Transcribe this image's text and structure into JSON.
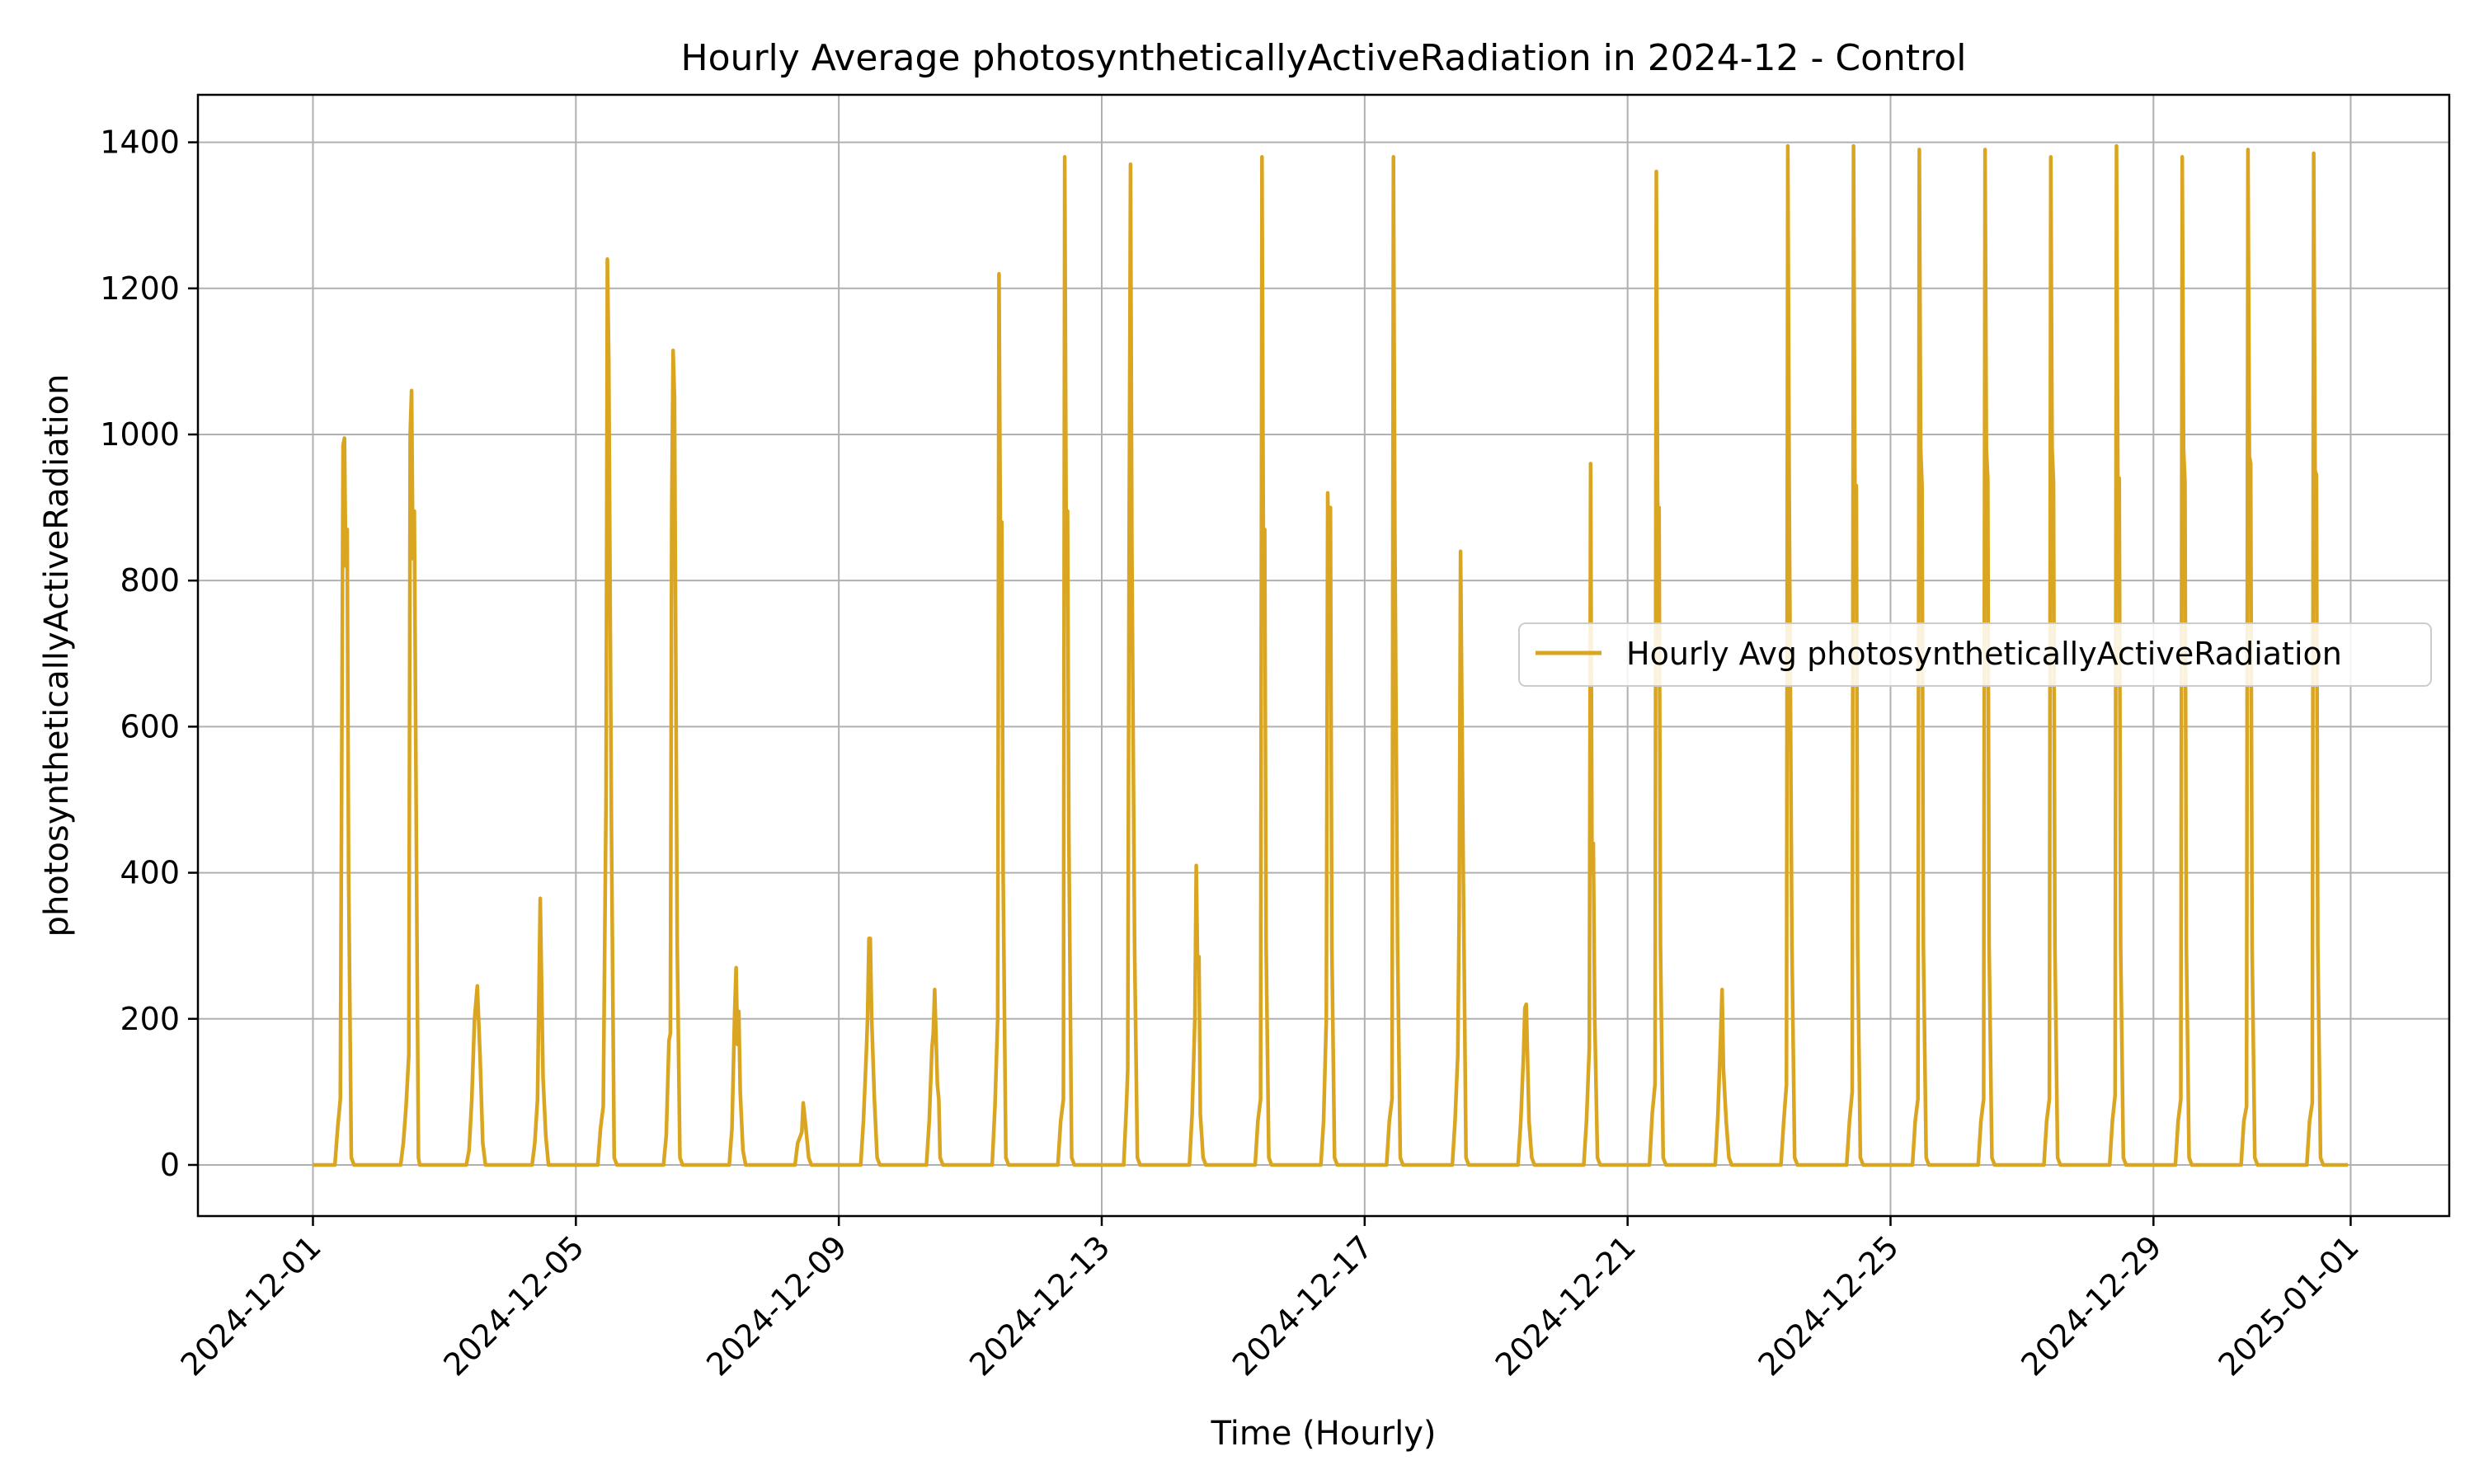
{
  "chart_data": {
    "type": "line",
    "title": "Hourly Average photosyntheticallyActiveRadiation in 2024-12 - Control",
    "xlabel": "Time (Hourly)",
    "ylabel": "photosyntheticallyActiveRadiation",
    "x_range": [
      "2024-11-29T06:00",
      "2025-01-02T12:00"
    ],
    "ylim": [
      -70,
      1465
    ],
    "grid": true,
    "legend_position": "center-right",
    "x_ticks": [
      "2024-12-01",
      "2024-12-05",
      "2024-12-09",
      "2024-12-13",
      "2024-12-17",
      "2024-12-21",
      "2024-12-25",
      "2024-12-29",
      "2025-01-01"
    ],
    "y_ticks": [
      0,
      200,
      400,
      600,
      800,
      1000,
      1200,
      1400
    ],
    "series": [
      {
        "name": "Hourly Avg photosyntheticallyActiveRadiation",
        "color": "#DAA520",
        "start": "2024-12-01T00:00",
        "end": "2024-12-31T23:00",
        "daily_profiles": [
          [
            [
              8,
              0
            ],
            [
              9,
              50
            ],
            [
              10,
              90
            ],
            [
              11,
              985
            ],
            [
              11.5,
              995
            ],
            [
              12,
              820
            ],
            [
              12.5,
              870
            ],
            [
              13,
              400
            ],
            [
              14,
              10
            ],
            [
              15,
              0
            ]
          ],
          [
            [
              8,
              0
            ],
            [
              9,
              30
            ],
            [
              10,
              80
            ],
            [
              11,
              150
            ],
            [
              11.5,
              1000
            ],
            [
              12,
              1060
            ],
            [
              12.5,
              830
            ],
            [
              13,
              895
            ],
            [
              14,
              300
            ],
            [
              14.5,
              10
            ],
            [
              15,
              0
            ]
          ],
          [
            [
              8,
              0
            ],
            [
              9,
              20
            ],
            [
              10,
              90
            ],
            [
              11,
              200
            ],
            [
              12,
              245
            ],
            [
              13,
              150
            ],
            [
              14,
              30
            ],
            [
              15,
              0
            ]
          ],
          [
            [
              8,
              0
            ],
            [
              9,
              30
            ],
            [
              10,
              90
            ],
            [
              11,
              365
            ],
            [
              12,
              120
            ],
            [
              13,
              40
            ],
            [
              14,
              0
            ]
          ],
          [
            [
              8,
              0
            ],
            [
              9,
              50
            ],
            [
              10,
              80
            ],
            [
              11,
              500
            ],
            [
              11.5,
              1240
            ],
            [
              12,
              1100
            ],
            [
              13,
              450
            ],
            [
              14,
              10
            ],
            [
              15,
              0
            ]
          ],
          [
            [
              8,
              0
            ],
            [
              9,
              40
            ],
            [
              10,
              170
            ],
            [
              10.5,
              180
            ],
            [
              11,
              900
            ],
            [
              11.5,
              1115
            ],
            [
              12,
              1050
            ],
            [
              13,
              300
            ],
            [
              14,
              10
            ],
            [
              15,
              0
            ]
          ],
          [
            [
              8,
              0
            ],
            [
              9,
              50
            ],
            [
              10,
              210
            ],
            [
              10.5,
              270
            ],
            [
              11,
              165
            ],
            [
              11.5,
              210
            ],
            [
              12,
              100
            ],
            [
              13,
              20
            ],
            [
              14,
              0
            ]
          ],
          [
            [
              8,
              0
            ],
            [
              9,
              30
            ],
            [
              10,
              40
            ],
            [
              10.5,
              45
            ],
            [
              11,
              85
            ],
            [
              12,
              50
            ],
            [
              13,
              10
            ],
            [
              14,
              0
            ]
          ],
          [
            [
              8,
              0
            ],
            [
              9,
              60
            ],
            [
              10,
              150
            ],
            [
              10.5,
              200
            ],
            [
              11,
              310
            ],
            [
              11.5,
              310
            ],
            [
              12,
              200
            ],
            [
              13,
              90
            ],
            [
              14,
              10
            ],
            [
              15,
              0
            ]
          ],
          [
            [
              8,
              0
            ],
            [
              9,
              60
            ],
            [
              10,
              160
            ],
            [
              10.5,
              180
            ],
            [
              11,
              240
            ],
            [
              12,
              110
            ],
            [
              12.5,
              90
            ],
            [
              13,
              10
            ],
            [
              14,
              0
            ]
          ],
          [
            [
              8,
              0
            ],
            [
              9,
              80
            ],
            [
              10,
              200
            ],
            [
              10.5,
              1220
            ],
            [
              11,
              850
            ],
            [
              11.5,
              880
            ],
            [
              12,
              400
            ],
            [
              13,
              10
            ],
            [
              14,
              0
            ]
          ],
          [
            [
              8,
              0
            ],
            [
              9,
              60
            ],
            [
              10,
              90
            ],
            [
              10.5,
              1380
            ],
            [
              11,
              880
            ],
            [
              11.5,
              895
            ],
            [
              12,
              450
            ],
            [
              13,
              10
            ],
            [
              14,
              0
            ]
          ],
          [
            [
              8,
              0
            ],
            [
              9,
              80
            ],
            [
              9.5,
              130
            ],
            [
              10,
              850
            ],
            [
              10.5,
              1370
            ],
            [
              11,
              850
            ],
            [
              12,
              300
            ],
            [
              13,
              10
            ],
            [
              14,
              0
            ]
          ],
          [
            [
              8,
              0
            ],
            [
              9,
              70
            ],
            [
              10,
              200
            ],
            [
              10.5,
              410
            ],
            [
              11,
              270
            ],
            [
              11.5,
              285
            ],
            [
              12,
              70
            ],
            [
              13,
              10
            ],
            [
              14,
              0
            ]
          ],
          [
            [
              8,
              0
            ],
            [
              9,
              60
            ],
            [
              10,
              90
            ],
            [
              10.5,
              1380
            ],
            [
              11,
              860
            ],
            [
              11.5,
              870
            ],
            [
              12,
              300
            ],
            [
              13,
              10
            ],
            [
              14,
              0
            ]
          ],
          [
            [
              8,
              0
            ],
            [
              9,
              60
            ],
            [
              10,
              200
            ],
            [
              10.5,
              920
            ],
            [
              11,
              800
            ],
            [
              11.5,
              900
            ],
            [
              12,
              300
            ],
            [
              13,
              10
            ],
            [
              14,
              0
            ]
          ],
          [
            [
              8,
              0
            ],
            [
              9,
              60
            ],
            [
              10,
              90
            ],
            [
              10.5,
              1380
            ],
            [
              11,
              870
            ],
            [
              12,
              300
            ],
            [
              13,
              10
            ],
            [
              14,
              0
            ]
          ],
          [
            [
              8,
              0
            ],
            [
              9,
              60
            ],
            [
              10,
              150
            ],
            [
              10.5,
              340
            ],
            [
              11,
              840
            ],
            [
              12,
              400
            ],
            [
              13,
              10
            ],
            [
              14,
              0
            ]
          ],
          [
            [
              8,
              0
            ],
            [
              9,
              60
            ],
            [
              10,
              150
            ],
            [
              10.5,
              215
            ],
            [
              11,
              220
            ],
            [
              12,
              60
            ],
            [
              13,
              10
            ],
            [
              14,
              0
            ]
          ],
          [
            [
              8,
              0
            ],
            [
              9,
              60
            ],
            [
              10,
              160
            ],
            [
              10.5,
              960
            ],
            [
              11,
              400
            ],
            [
              11.5,
              440
            ],
            [
              12,
              200
            ],
            [
              13,
              10
            ],
            [
              14,
              0
            ]
          ],
          [
            [
              8,
              0
            ],
            [
              9,
              70
            ],
            [
              10,
              110
            ],
            [
              10.5,
              1360
            ],
            [
              11,
              860
            ],
            [
              11.5,
              900
            ],
            [
              12,
              300
            ],
            [
              13,
              10
            ],
            [
              14,
              0
            ]
          ],
          [
            [
              8,
              0
            ],
            [
              9,
              70
            ],
            [
              10,
              180
            ],
            [
              10.5,
              240
            ],
            [
              11,
              130
            ],
            [
              12,
              60
            ],
            [
              13,
              10
            ],
            [
              14,
              0
            ]
          ],
          [
            [
              8,
              0
            ],
            [
              9,
              60
            ],
            [
              10,
              110
            ],
            [
              10.5,
              1395
            ],
            [
              11,
              920
            ],
            [
              12,
              300
            ],
            [
              13,
              10
            ],
            [
              14,
              0
            ]
          ],
          [
            [
              8,
              0
            ],
            [
              9,
              60
            ],
            [
              10,
              100
            ],
            [
              10.5,
              1395
            ],
            [
              11,
              930
            ],
            [
              11.5,
              930
            ],
            [
              12,
              300
            ],
            [
              13,
              10
            ],
            [
              14,
              0
            ]
          ],
          [
            [
              8,
              0
            ],
            [
              9,
              60
            ],
            [
              10,
              90
            ],
            [
              10.5,
              1390
            ],
            [
              11,
              980
            ],
            [
              11.5,
              930
            ],
            [
              12,
              300
            ],
            [
              13,
              10
            ],
            [
              14,
              0
            ]
          ],
          [
            [
              8,
              0
            ],
            [
              9,
              60
            ],
            [
              10,
              90
            ],
            [
              10.5,
              1390
            ],
            [
              11,
              980
            ],
            [
              11.5,
              940
            ],
            [
              12,
              300
            ],
            [
              13,
              10
            ],
            [
              14,
              0
            ]
          ],
          [
            [
              8,
              0
            ],
            [
              9,
              60
            ],
            [
              10,
              90
            ],
            [
              10.5,
              1380
            ],
            [
              11,
              980
            ],
            [
              11.5,
              935
            ],
            [
              12,
              300
            ],
            [
              13,
              10
            ],
            [
              14,
              0
            ]
          ],
          [
            [
              8,
              0
            ],
            [
              9,
              60
            ],
            [
              10,
              95
            ],
            [
              10.5,
              1395
            ],
            [
              11,
              940
            ],
            [
              11.5,
              940
            ],
            [
              12,
              300
            ],
            [
              13,
              10
            ],
            [
              14,
              0
            ]
          ],
          [
            [
              8,
              0
            ],
            [
              9,
              60
            ],
            [
              10,
              90
            ],
            [
              10.5,
              1380
            ],
            [
              11,
              980
            ],
            [
              11.5,
              935
            ],
            [
              12,
              300
            ],
            [
              13,
              10
            ],
            [
              14,
              0
            ]
          ],
          [
            [
              8,
              0
            ],
            [
              9,
              60
            ],
            [
              10,
              80
            ],
            [
              10.5,
              1390
            ],
            [
              11,
              970
            ],
            [
              11.5,
              960
            ],
            [
              12,
              300
            ],
            [
              13,
              10
            ],
            [
              14,
              0
            ]
          ],
          [
            [
              8,
              0
            ],
            [
              9,
              60
            ],
            [
              10,
              85
            ],
            [
              10.5,
              1385
            ],
            [
              11,
              950
            ],
            [
              11.5,
              945
            ],
            [
              12,
              300
            ],
            [
              13,
              10
            ],
            [
              14,
              0
            ]
          ]
        ]
      }
    ]
  }
}
